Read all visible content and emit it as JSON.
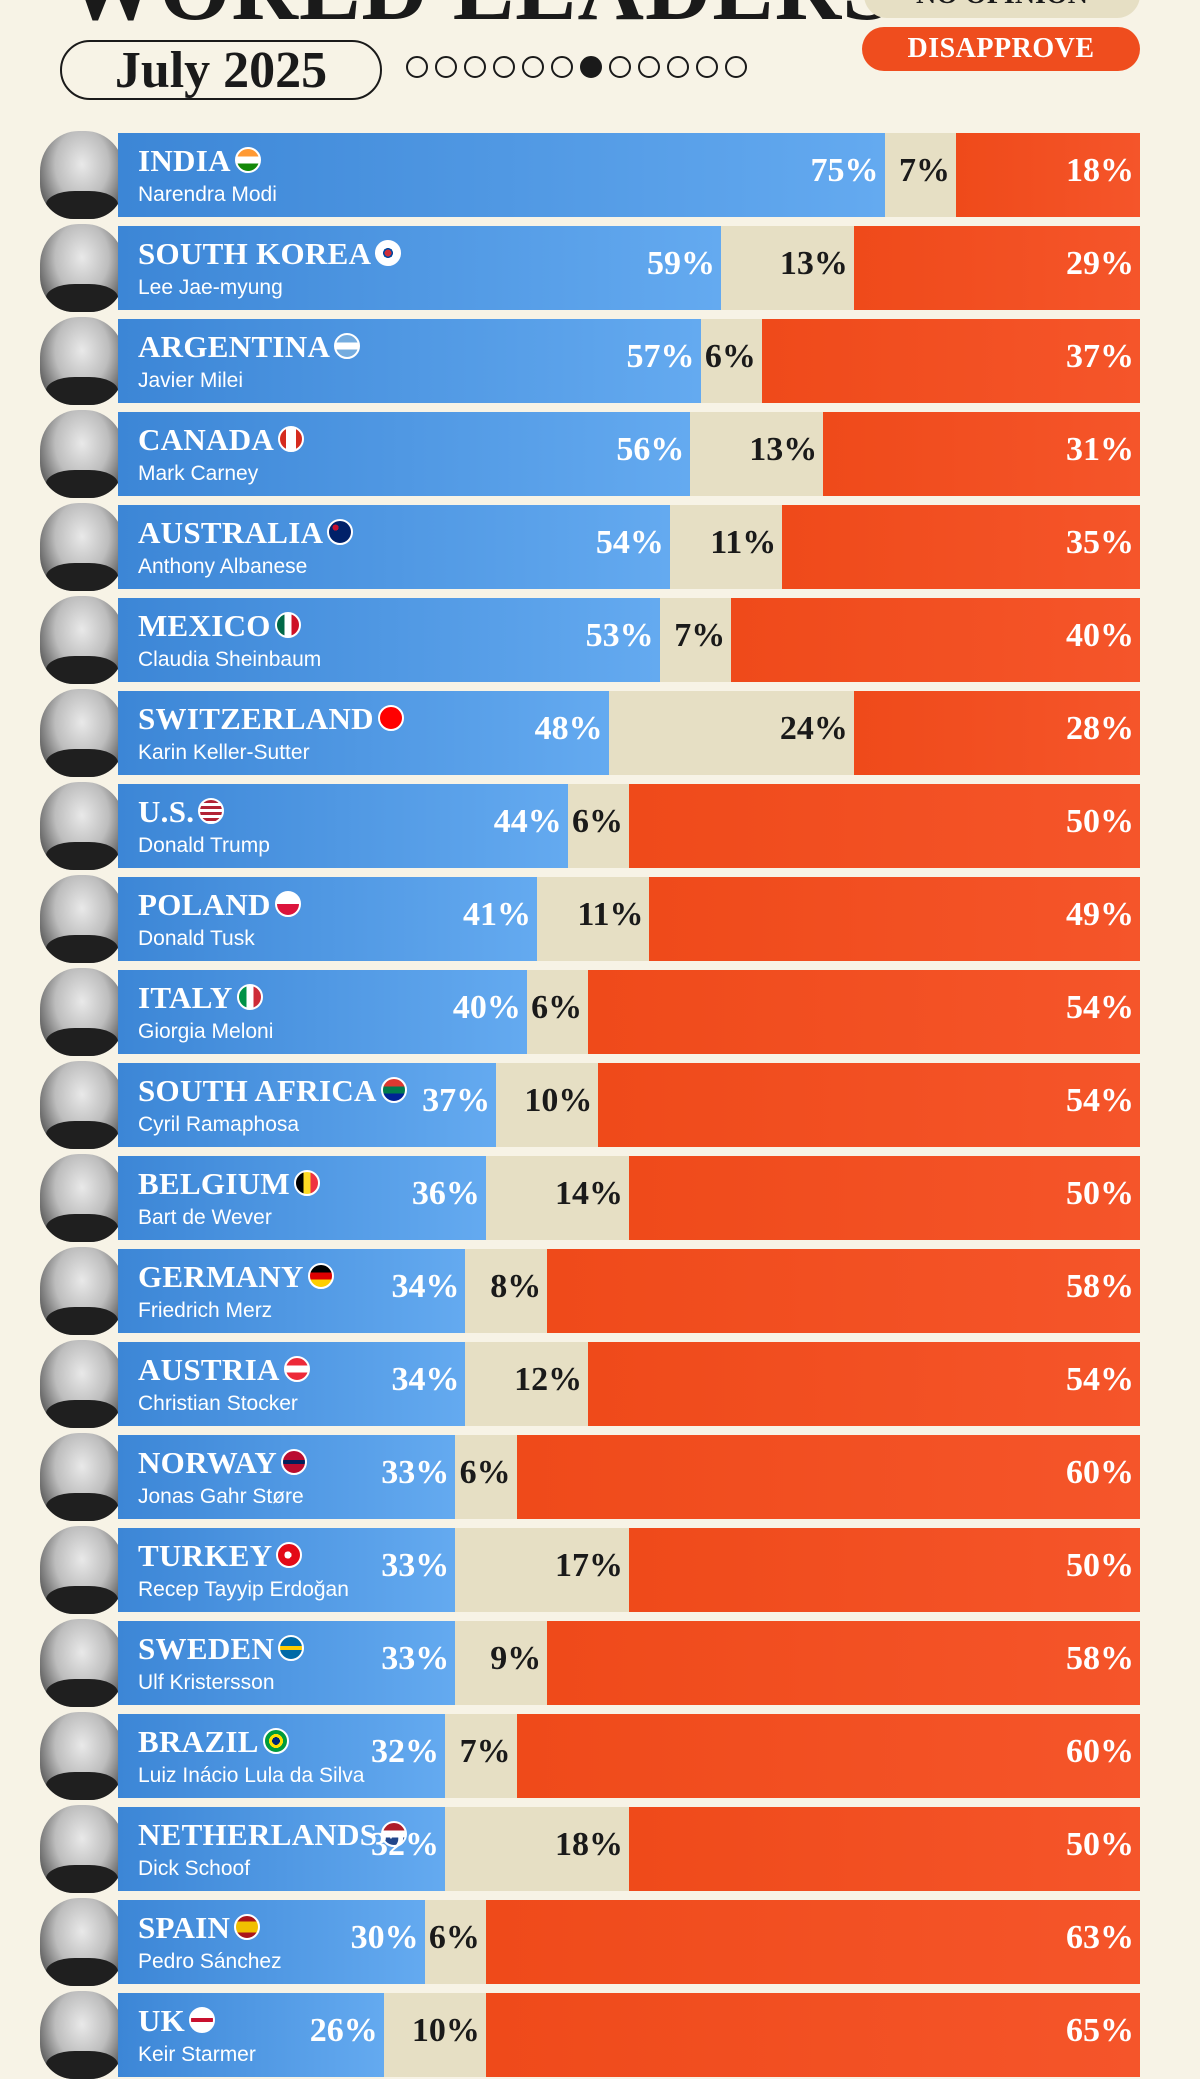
{
  "header": {
    "title": "WORLD LEADERS",
    "date": "July 2025",
    "pager": {
      "pages": 12,
      "active": 6
    }
  },
  "legend": {
    "no_opinion": "NO OPINION",
    "disapprove": "DISAPPROVE"
  },
  "colors": {
    "approve": "#4a94e4",
    "no_opinion": "#e6dfc4",
    "disapprove": "#ef4d1e",
    "background": "#f7f3e6"
  },
  "chart_data": {
    "type": "bar",
    "stacked": true,
    "orientation": "horizontal",
    "categories": [
      "INDIA",
      "SOUTH KOREA",
      "ARGENTINA",
      "CANADA",
      "AUSTRALIA",
      "MEXICO",
      "SWITZERLAND",
      "U.S.",
      "POLAND",
      "ITALY",
      "SOUTH AFRICA",
      "BELGIUM",
      "GERMANY",
      "AUSTRIA",
      "NORWAY",
      "TURKEY",
      "SWEDEN",
      "BRAZIL",
      "NETHERLANDS",
      "SPAIN",
      "UK"
    ],
    "leaders": [
      "Narendra Modi",
      "Lee Jae-myung",
      "Javier Milei",
      "Mark Carney",
      "Anthony Albanese",
      "Claudia Sheinbaum",
      "Karin Keller-Sutter",
      "Donald Trump",
      "Donald Tusk",
      "Giorgia Meloni",
      "Cyril Ramaphosa",
      "Bart de Wever",
      "Friedrich Merz",
      "Christian Stocker",
      "Jonas Gahr Støre",
      "Recep Tayyip Erdoğan",
      "Ulf Kristersson",
      "Luiz Inácio Lula da Silva",
      "Dick Schoof",
      "Pedro Sánchez",
      "Keir Starmer"
    ],
    "flags": [
      "flag-india",
      "flag-south-korea",
      "flag-argentina",
      "flag-canada",
      "flag-australia",
      "flag-mexico",
      "flag-switzerland",
      "flag-us",
      "flag-poland",
      "flag-italy",
      "flag-south-africa",
      "flag-belgium",
      "flag-germany",
      "flag-austria",
      "flag-norway",
      "flag-turkey",
      "flag-sweden",
      "flag-brazil",
      "flag-netherlands",
      "flag-spain",
      "flag-uk"
    ],
    "series": [
      {
        "key": "approve",
        "values": [
          75,
          59,
          57,
          56,
          54,
          53,
          48,
          44,
          41,
          40,
          37,
          36,
          34,
          34,
          33,
          33,
          33,
          32,
          32,
          30,
          26
        ]
      },
      {
        "key": "no_opinion",
        "name": "NO OPINION",
        "values": [
          7,
          13,
          6,
          13,
          11,
          7,
          24,
          6,
          11,
          6,
          10,
          14,
          8,
          12,
          6,
          17,
          9,
          7,
          18,
          6,
          10
        ]
      },
      {
        "key": "disapprove",
        "name": "DISAPPROVE",
        "values": [
          18,
          29,
          37,
          31,
          35,
          40,
          28,
          50,
          49,
          54,
          54,
          50,
          58,
          54,
          60,
          50,
          58,
          60,
          50,
          63,
          65
        ]
      }
    ],
    "xlim": [
      0,
      100
    ],
    "unit": "%"
  }
}
